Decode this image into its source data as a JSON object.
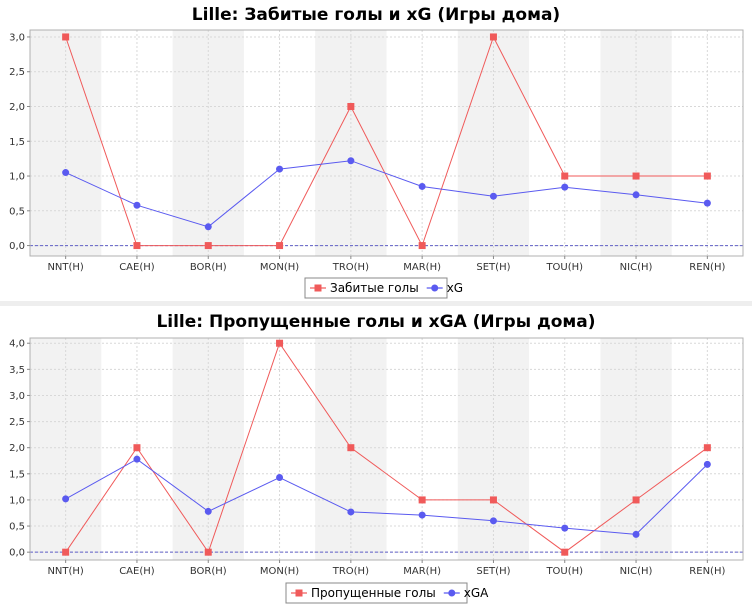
{
  "chart_data": [
    {
      "type": "line",
      "title": "Lille: Забитые голы и xG (Игры дома)",
      "categories": [
        "NNT(H)",
        "CAE(H)",
        "BOR(H)",
        "MON(H)",
        "TRO(H)",
        "MAR(H)",
        "SET(H)",
        "TOU(H)",
        "NIC(H)",
        "REN(H)"
      ],
      "ylim": [
        -0.15,
        3.1
      ],
      "yticks": [
        "0,0",
        "0,5",
        "1,0",
        "1,5",
        "2,0",
        "2,5",
        "3,0"
      ],
      "ytick_values": [
        0,
        0.5,
        1.0,
        1.5,
        2.0,
        2.5,
        3.0
      ],
      "grid": true,
      "legend": "bottom",
      "series": [
        {
          "name": "Забитые голы",
          "color": "#f05a5a",
          "marker": "square",
          "values": [
            3,
            0,
            0,
            0,
            2,
            0,
            3,
            1,
            1,
            1
          ]
        },
        {
          "name": "xG",
          "color": "#5a5af0",
          "marker": "circle",
          "values": [
            1.05,
            0.58,
            0.27,
            1.1,
            1.22,
            0.85,
            0.71,
            0.84,
            0.73,
            0.61
          ]
        }
      ]
    },
    {
      "type": "line",
      "title": "Lille: Пропущенные голы и xGA (Игры дома)",
      "categories": [
        "NNT(H)",
        "CAE(H)",
        "BOR(H)",
        "MON(H)",
        "TRO(H)",
        "MAR(H)",
        "SET(H)",
        "TOU(H)",
        "NIC(H)",
        "REN(H)"
      ],
      "ylim": [
        -0.15,
        4.1
      ],
      "yticks": [
        "0,0",
        "0,5",
        "1,0",
        "1,5",
        "2,0",
        "2,5",
        "3,0",
        "3,5",
        "4,0"
      ],
      "ytick_values": [
        0,
        0.5,
        1.0,
        1.5,
        2.0,
        2.5,
        3.0,
        3.5,
        4.0
      ],
      "grid": true,
      "legend": "bottom",
      "series": [
        {
          "name": "Пропущенные голы",
          "color": "#f05a5a",
          "marker": "square",
          "values": [
            0,
            2,
            0,
            4,
            2,
            1,
            1,
            0,
            1,
            2
          ]
        },
        {
          "name": "xGA",
          "color": "#5a5af0",
          "marker": "circle",
          "values": [
            1.02,
            1.78,
            0.78,
            1.43,
            0.77,
            0.71,
            0.6,
            0.46,
            0.34,
            1.68
          ]
        }
      ]
    }
  ]
}
